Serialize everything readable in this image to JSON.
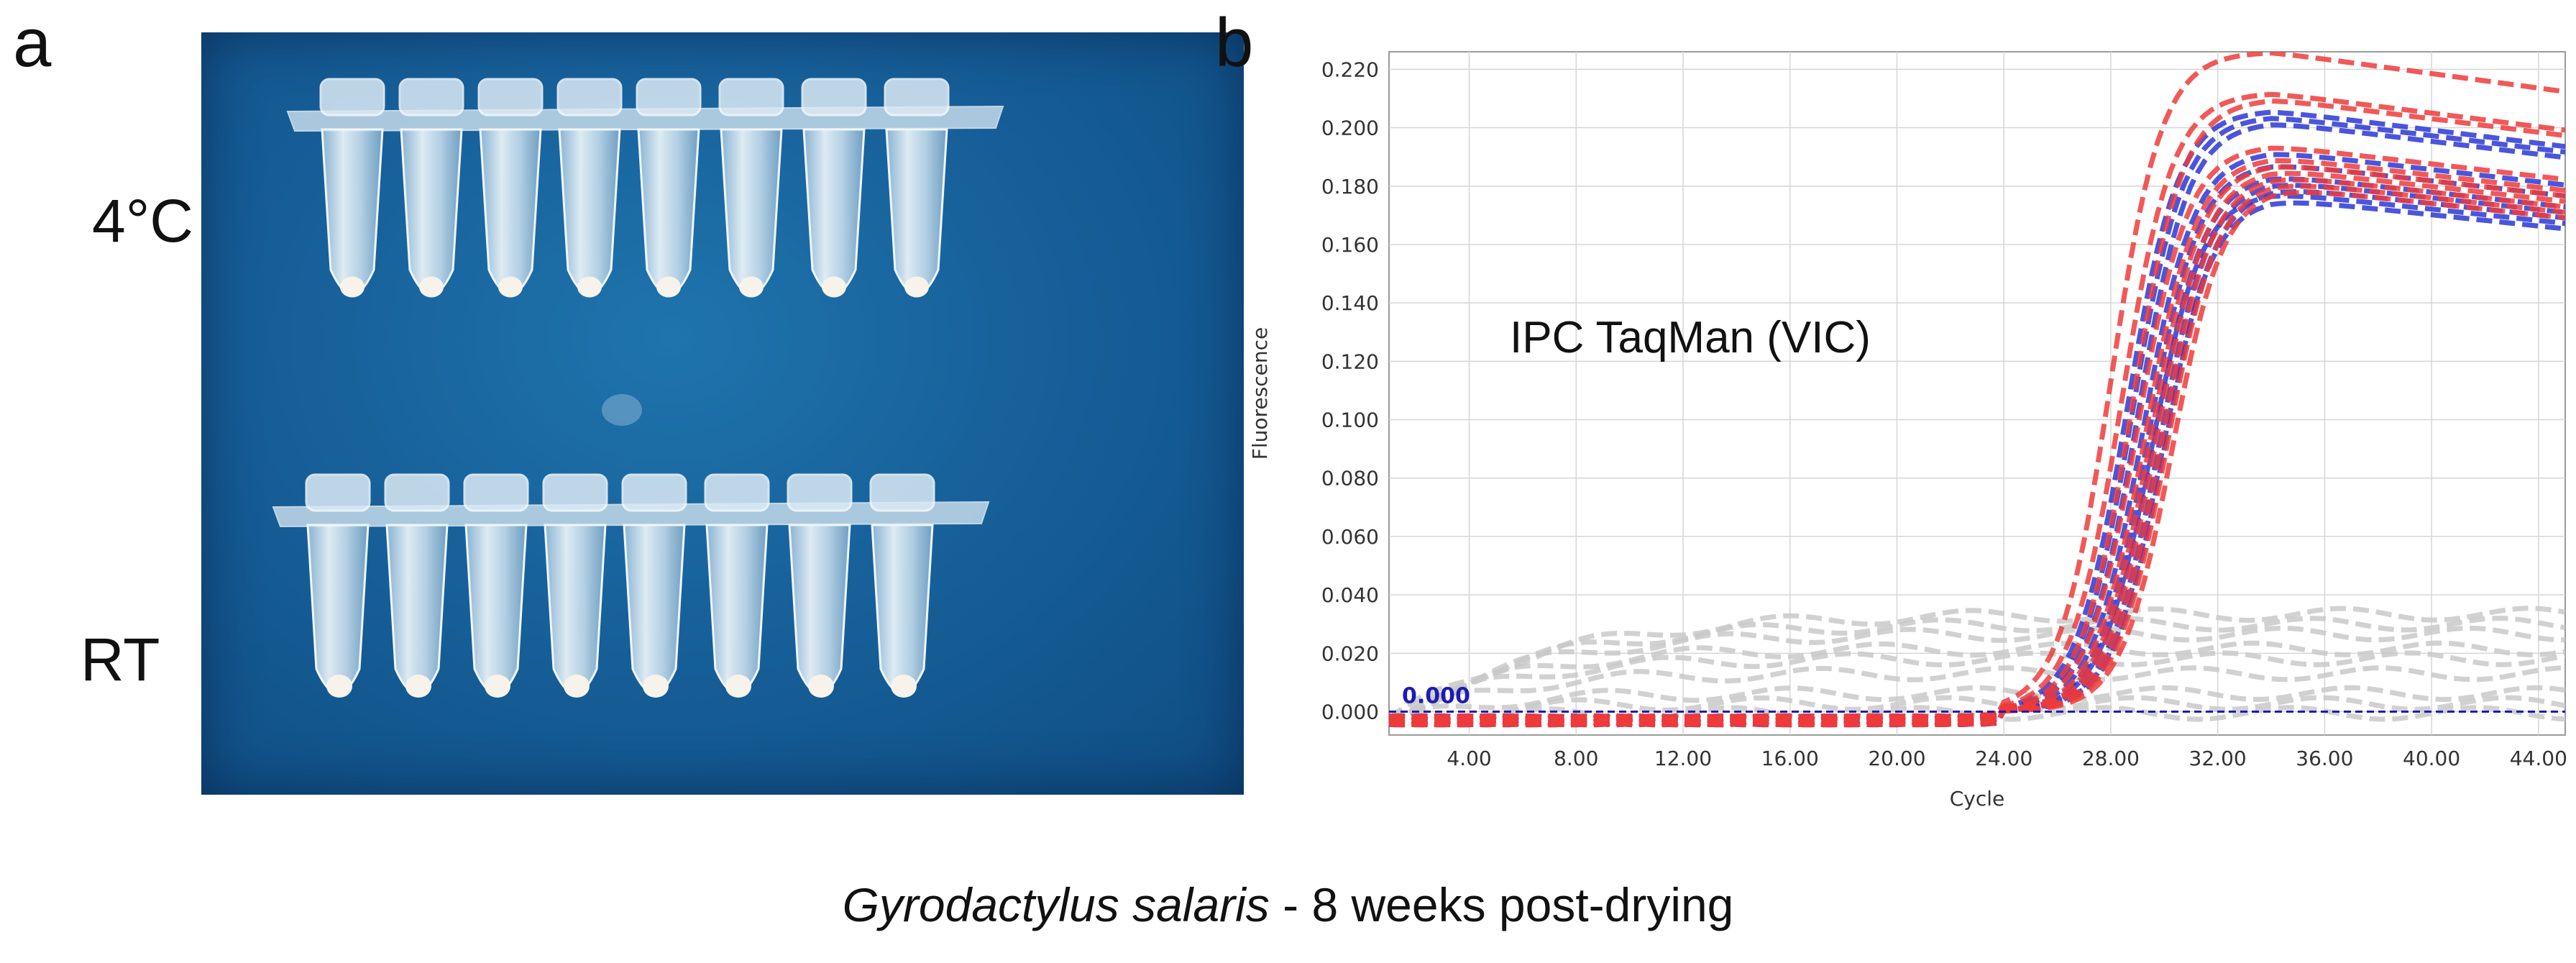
{
  "panels": {
    "a": {
      "letter": "a",
      "row_labels": [
        "4°C",
        "RT"
      ]
    },
    "b": {
      "letter": "b"
    }
  },
  "caption": {
    "species": "Gyrodactylus salaris",
    "rest": " - 8 weeks post-drying"
  },
  "chart_data": {
    "type": "line",
    "annotation": "IPC TaqMan (VIC)",
    "xlabel": "Cycle",
    "ylabel": "Fluorescence",
    "xlim": [
      1,
      45
    ],
    "ylim": [
      -0.008,
      0.226
    ],
    "xticks": [
      "4.00",
      "8.00",
      "12.00",
      "16.00",
      "20.00",
      "24.00",
      "28.00",
      "32.00",
      "36.00",
      "40.00",
      "44.00"
    ],
    "yticks": [
      "0.000",
      "0.020",
      "0.040",
      "0.060",
      "0.080",
      "0.100",
      "0.120",
      "0.140",
      "0.160",
      "0.180",
      "0.200",
      "0.220"
    ],
    "grid": true,
    "threshold": {
      "value": 0.0,
      "label": "0.000",
      "color": "#1c1cb4"
    },
    "colors": {
      "red": "#ee3b3b",
      "blue": "#2b37d6",
      "gray": "#c9c9c9"
    },
    "curve_groups": [
      {
        "color": "red",
        "plateaus": [
          0.226,
          0.212,
          0.21,
          0.194,
          0.19,
          0.188,
          0.186,
          0.184,
          0.182,
          0.18
        ],
        "midpoints": [
          28.0,
          28.4,
          28.8,
          29.0,
          29.3,
          29.5,
          29.7,
          29.9,
          30.1,
          30.3
        ]
      },
      {
        "color": "blue",
        "plateaus": [
          0.206,
          0.204,
          0.202,
          0.192,
          0.188,
          0.184,
          0.182,
          0.18,
          0.178,
          0.176
        ],
        "midpoints": [
          28.6,
          28.8,
          29.0,
          29.2,
          29.4,
          29.6,
          29.8,
          30.0,
          29.5,
          29.9
        ]
      },
      {
        "color": "gray",
        "finals": [
          0.044,
          0.04,
          0.036,
          0.03,
          0.026,
          0.02,
          0.012,
          0.008,
          0.004
        ]
      }
    ]
  }
}
